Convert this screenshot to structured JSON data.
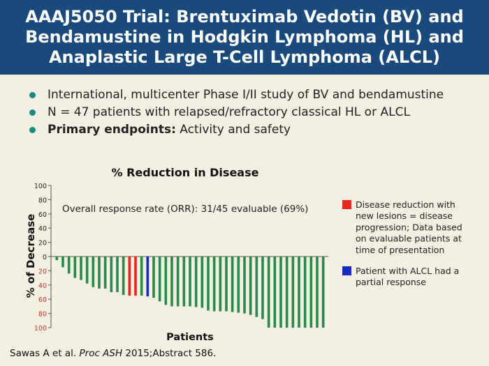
{
  "header": {
    "title_lines": [
      "AAAJ5050 Trial: Brentuximab Vedotin (BV) and",
      "Bendamustine in Hodgkin Lymphoma (HL) and",
      "Anaplastic Large T-Cell Lymphoma (ALCL)"
    ]
  },
  "bullets": [
    {
      "bold": "",
      "text": "International, multicenter Phase I/II study of BV and bendamustine"
    },
    {
      "bold": "",
      "text": "N = 47 patients with relapsed/refractory classical HL or ALCL"
    },
    {
      "bold": "Primary endpoints:",
      "text": " Activity and safety"
    }
  ],
  "citation": {
    "prefix": "Sawas A et al. ",
    "journal": "Proc ASH",
    "suffix": " 2015;Abstract 586."
  },
  "colors": {
    "header_bg": "#1a4a7c",
    "bullet": "#17897e",
    "bar_default": "#2a8a4a",
    "bar_red": "#e8281c",
    "bar_blue": "#1428c8",
    "tick_negative": "#c0392b"
  },
  "chart_data": {
    "type": "bar",
    "title": "% Reduction in Disease",
    "xlabel": "Patients",
    "ylabel": "% of Decrease",
    "ylim": [
      -100,
      100
    ],
    "yticks": [
      {
        "value": 100,
        "label": "100"
      },
      {
        "value": 80,
        "label": "80"
      },
      {
        "value": 60,
        "label": "60"
      },
      {
        "value": 40,
        "label": "40"
      },
      {
        "value": 20,
        "label": "20"
      },
      {
        "value": 0,
        "label": "0"
      },
      {
        "value": -20,
        "label": "20"
      },
      {
        "value": -40,
        "label": "40"
      },
      {
        "value": -60,
        "label": "60"
      },
      {
        "value": -80,
        "label": "80"
      },
      {
        "value": -100,
        "label": "100"
      }
    ],
    "annotation": "Overall response rate (ORR): 31/45 evaluable (69%)",
    "values": [
      -5,
      -15,
      -24,
      -30,
      -33,
      -38,
      -43,
      -45,
      -45,
      -50,
      -50,
      -54,
      -55,
      -55,
      -55,
      -56,
      -58,
      -63,
      -68,
      -70,
      -70,
      -70,
      -70,
      -71,
      -72,
      -76,
      -77,
      -77,
      -77,
      -78,
      -79,
      -80,
      -82,
      -85,
      -88,
      -100,
      -100,
      -100,
      -100,
      -100,
      -100,
      -100,
      -100,
      -100,
      -100
    ],
    "highlight": [
      {
        "index": 12,
        "kind": "red"
      },
      {
        "index": 13,
        "kind": "red"
      },
      {
        "index": 15,
        "kind": "blue"
      }
    ],
    "legend": [
      {
        "color": "#e8281c",
        "lines": [
          "Disease reduction with",
          "new lesions = disease",
          "progression; Data based",
          "on evaluable patients at",
          "time of presentation"
        ]
      },
      {
        "color": "#1428c8",
        "lines": [
          "Patient with ALCL had a",
          "partial response"
        ]
      }
    ]
  }
}
